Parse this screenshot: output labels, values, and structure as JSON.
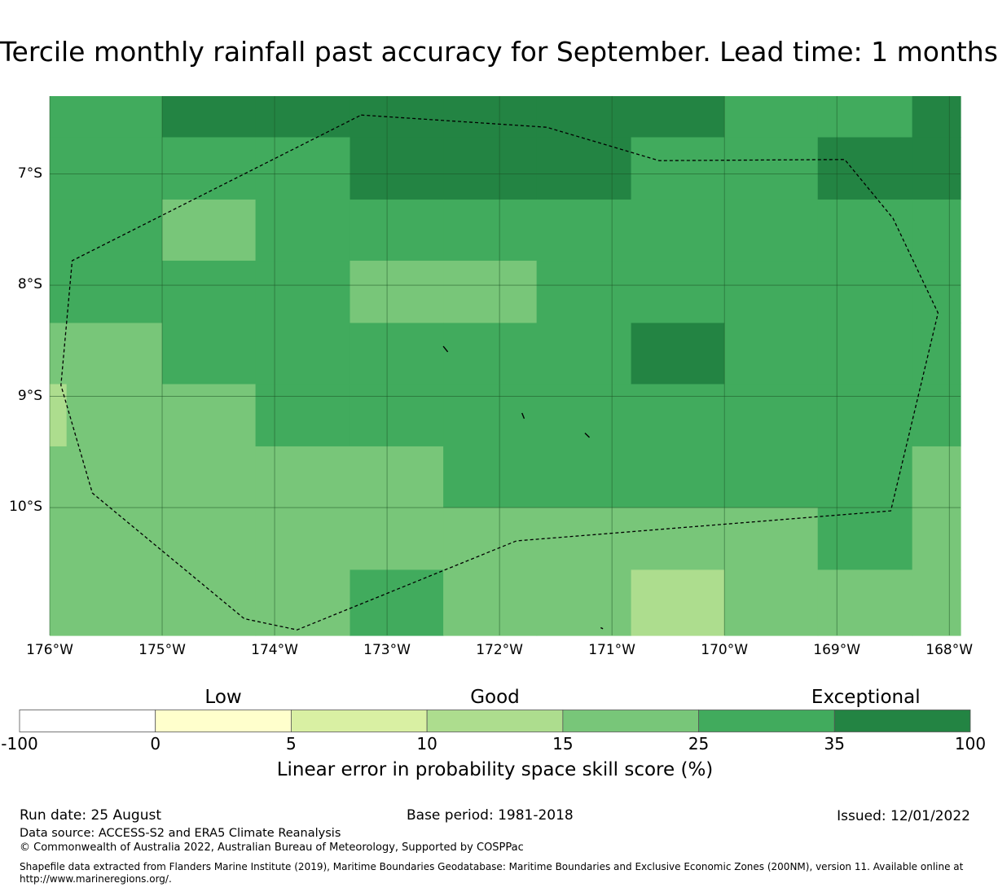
{
  "title": "Tercile monthly rainfall past accuracy for September. Lead time: 1 months",
  "map": {
    "lon_range": [
      -176.0,
      -167.9
    ],
    "lat_range": [
      -11.15,
      -6.3
    ],
    "lat_ticks": [
      {
        "value": -7,
        "label": "7°S"
      },
      {
        "value": -8,
        "label": "8°S"
      },
      {
        "value": -9,
        "label": "9°S"
      },
      {
        "value": -10,
        "label": "10°S"
      }
    ],
    "lon_ticks": [
      {
        "value": -176,
        "label": "176°W"
      },
      {
        "value": -175,
        "label": "175°W"
      },
      {
        "value": -174,
        "label": "174°W"
      },
      {
        "value": -173,
        "label": "173°W"
      },
      {
        "value": -172,
        "label": "172°W"
      },
      {
        "value": -171,
        "label": "171°W"
      },
      {
        "value": -170,
        "label": "170°W"
      },
      {
        "value": -169,
        "label": "169°W"
      },
      {
        "value": -168,
        "label": "168°W"
      }
    ],
    "grid": true,
    "cell_colors": [
      "#ffffff",
      "#ffffcc",
      "#d9f0a3",
      "#addd8e",
      "#78c679",
      "#41ab5d",
      "#238443"
    ],
    "cell_lons": [
      -176.0,
      -175.0,
      -174.17,
      -173.33,
      -172.5,
      -171.67,
      -170.83,
      -170.0,
      -169.17,
      -168.33,
      -167.9
    ],
    "cell_lats": [
      -6.3,
      -6.67,
      -7.23,
      -7.78,
      -8.34,
      -8.89,
      -9.45,
      -10.0,
      -10.56,
      -11.15
    ],
    "cells": [
      [
        5,
        6,
        6,
        6,
        6,
        6,
        6,
        5,
        5,
        6
      ],
      [
        5,
        5,
        5,
        6,
        6,
        6,
        5,
        5,
        6,
        6
      ],
      [
        5,
        4,
        5,
        5,
        5,
        5,
        5,
        5,
        5,
        5
      ],
      [
        5,
        5,
        5,
        4,
        4,
        5,
        5,
        5,
        5,
        5
      ],
      [
        4,
        5,
        5,
        5,
        5,
        5,
        6,
        5,
        5,
        5
      ],
      [
        4,
        4,
        5,
        5,
        5,
        5,
        5,
        5,
        5,
        5
      ],
      [
        4,
        4,
        4,
        4,
        5,
        5,
        5,
        5,
        5,
        4
      ],
      [
        4,
        4,
        4,
        4,
        4,
        4,
        4,
        4,
        5,
        4
      ],
      [
        4,
        4,
        4,
        5,
        4,
        4,
        3,
        4,
        4,
        4
      ]
    ],
    "cell_extra": {
      "lon": [
        -176.0,
        -175.85
      ],
      "lat": [
        -8.89,
        -9.45
      ],
      "level": 3
    },
    "eez_boundary": [
      [
        -173.23,
        -6.47
      ],
      [
        -171.58,
        -6.58
      ],
      [
        -170.58,
        -6.88
      ],
      [
        -168.93,
        -6.87
      ],
      [
        -168.5,
        -7.4
      ],
      [
        -168.1,
        -8.25
      ],
      [
        -168.52,
        -10.03
      ],
      [
        -171.85,
        -10.3
      ],
      [
        -173.8,
        -11.1
      ],
      [
        -174.27,
        -11.0
      ],
      [
        -175.62,
        -9.87
      ],
      [
        -175.9,
        -8.9
      ],
      [
        -175.8,
        -7.78
      ],
      [
        -173.23,
        -6.47
      ]
    ],
    "islands": [
      [
        [
          -172.5,
          -8.55
        ],
        [
          -172.46,
          -8.6
        ]
      ],
      [
        [
          -171.8,
          -9.15
        ],
        [
          -171.78,
          -9.2
        ]
      ],
      [
        [
          -171.24,
          -9.33
        ],
        [
          -171.2,
          -9.37
        ]
      ],
      [
        [
          -171.1,
          -11.08
        ],
        [
          -171.08,
          -11.09
        ]
      ]
    ]
  },
  "colorbar": {
    "category_labels": [
      {
        "text": "Low",
        "value": 2.5
      },
      {
        "text": "Good",
        "value": 12.5
      },
      {
        "text": "Exceptional",
        "value": 50
      }
    ],
    "bounds": [
      "-100",
      "0",
      "5",
      "10",
      "15",
      "25",
      "35",
      "100"
    ],
    "colors": [
      "#ffffff",
      "#ffffcc",
      "#d9f0a3",
      "#addd8e",
      "#78c679",
      "#41ab5d",
      "#238443"
    ],
    "caption": "Linear error in probability space skill score (%)"
  },
  "footer": {
    "run_date": "Run date: 25 August",
    "base_period": "Base period: 1981-2018",
    "issued": "Issued: 12/01/2022",
    "data_source": "Data source: ACCESS-S2 and ERA5 Climate Reanalysis",
    "copyright": "© Commonwealth of Australia 2022, Australian Bureau of Meteorology, Supported by COSPPac",
    "shapefile_line1": "Shapefile data extracted from Flanders Marine Institute (2019), Maritime Boundaries Geodatabase: Maritime Boundaries and Exclusive Economic Zones (200NM), version 11. Available online at",
    "shapefile_line2": "http://www.marineregions.org/."
  }
}
